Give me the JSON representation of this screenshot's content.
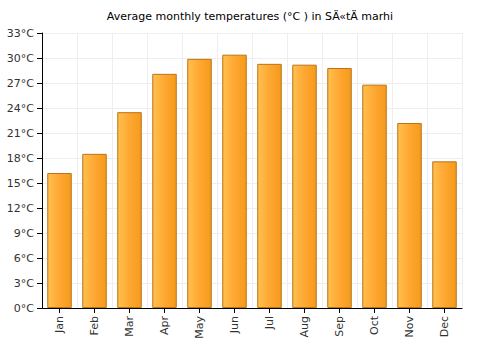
{
  "chart_data": {
    "type": "bar",
    "title": "Average monthly temperatures (°C ) in SÄ«tÄ marhi",
    "categories": [
      "Jan",
      "Feb",
      "Mar",
      "Apr",
      "May",
      "Jun",
      "Jul",
      "Aug",
      "Sep",
      "Oct",
      "Nov",
      "Dec"
    ],
    "values": [
      16.2,
      18.5,
      23.5,
      28.1,
      29.9,
      30.4,
      29.3,
      29.2,
      28.8,
      26.8,
      22.2,
      17.6
    ],
    "color": "#ffa733",
    "ylim": [
      0,
      33
    ],
    "yticks": [
      {
        "value": 0,
        "label": "0°C"
      },
      {
        "value": 3,
        "label": "3°C"
      },
      {
        "value": 6,
        "label": "6°C"
      },
      {
        "value": 9,
        "label": "9°C"
      },
      {
        "value": 12,
        "label": "12°C"
      },
      {
        "value": 15,
        "label": "15°C"
      },
      {
        "value": 18,
        "label": "18°C"
      },
      {
        "value": 21,
        "label": "21°C"
      },
      {
        "value": 24,
        "label": "24°C"
      },
      {
        "value": 27,
        "label": "27°C"
      },
      {
        "value": 30,
        "label": "30°C"
      },
      {
        "value": 33,
        "label": "33°C"
      }
    ],
    "grid": true
  }
}
